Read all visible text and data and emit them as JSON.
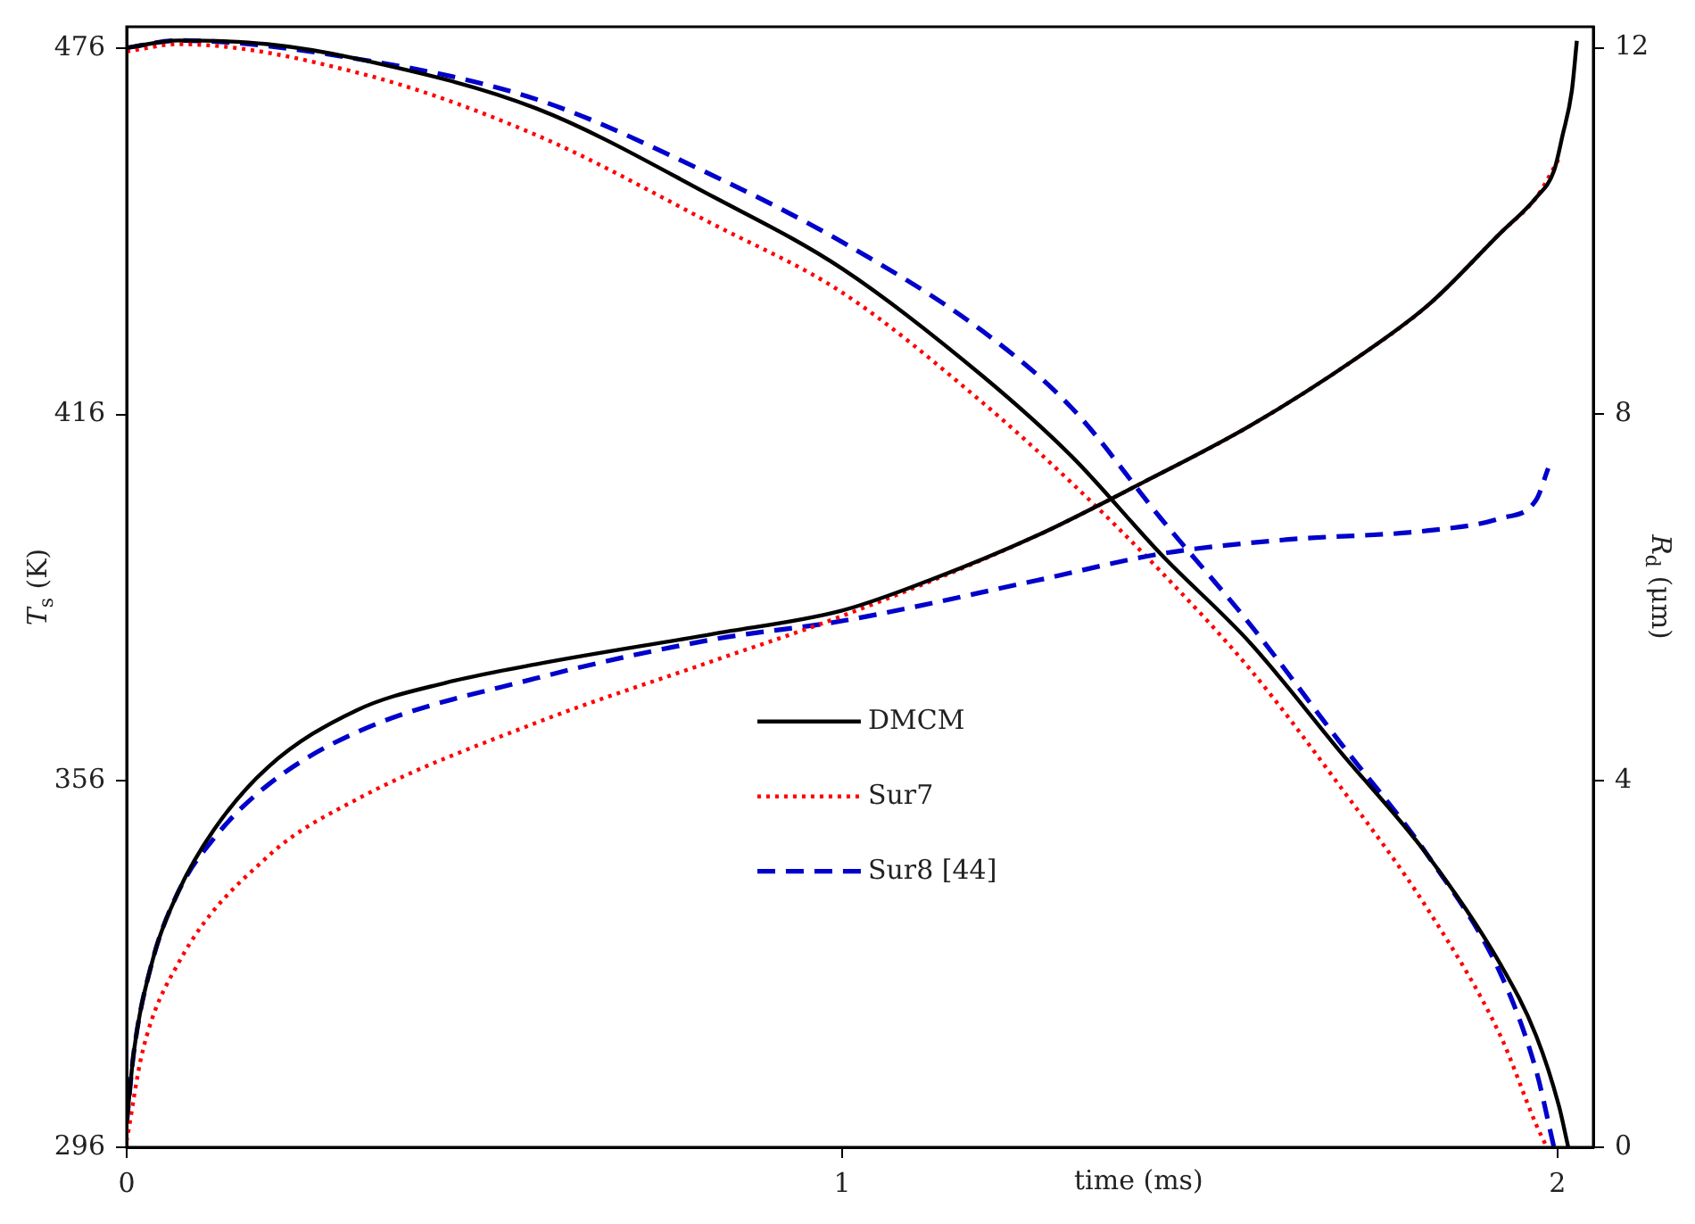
{
  "chart_data": {
    "type": "line",
    "xlabel": "time (ms)",
    "ylabel": "T$_{s}$ (K)",
    "y2label": "R$_{d}$ (μm)",
    "xlim": [
      0,
      2.05
    ],
    "xticks": [
      0,
      1,
      2
    ],
    "ylim": [
      296,
      479.5
    ],
    "yticks": [
      296,
      356,
      416,
      476
    ],
    "y2lim": [
      0,
      12.23
    ],
    "y2ticks": [
      0,
      4,
      8,
      12
    ],
    "grid": false,
    "legend": "center",
    "marker": "none",
    "series": [
      {
        "name": "DMCM",
        "color": "#000000",
        "line_style": "solid",
        "x": [
          0,
          0.01,
          0.035,
          0.072,
          0.122,
          0.197,
          0.322,
          0.447,
          0.572,
          0.821,
          1.0,
          1.121,
          1.271,
          1.421,
          1.571,
          1.72,
          1.82,
          1.92,
          1.97,
          1.995,
          2.007,
          2.02,
          2.027
        ],
        "values": [
          299.9,
          311.6,
          326.1,
          337.8,
          348.0,
          358.2,
          367.6,
          372.1,
          375.1,
          380.1,
          383.9,
          388.8,
          396.1,
          404.9,
          414.2,
          425.3,
          434.0,
          445.7,
          451.5,
          455.9,
          461.7,
          469.0,
          477.2
        ]
      },
      {
        "name": "Sur7",
        "color": "#ff0000",
        "line_style": "dotted",
        "x": [
          0,
          0.022,
          0.072,
          0.197,
          0.322,
          0.572,
          0.821,
          1.0,
          1.271,
          1.421,
          1.571,
          1.72,
          1.82,
          1.92,
          1.97,
          2.002
        ],
        "values": [
          297.0,
          311.6,
          326.1,
          343.6,
          353.0,
          365.5,
          375.7,
          383.0,
          396.1,
          404.9,
          414.2,
          425.3,
          434.0,
          445.7,
          451.5,
          457.9
        ]
      },
      {
        "name": "Sur8 [44]",
        "color": "#0000cc",
        "line_style": "dashed",
        "x": [
          0,
          0.01,
          0.035,
          0.072,
          0.122,
          0.197,
          0.322,
          0.572,
          0.821,
          1.0,
          1.271,
          1.446,
          1.62,
          1.82,
          1.92,
          1.97,
          1.987
        ],
        "values": [
          299.9,
          311.6,
          326.1,
          337.8,
          346.6,
          355.3,
          364.0,
          372.8,
          379.2,
          382.2,
          388.8,
          393.2,
          395.5,
          397.0,
          399.0,
          402.0,
          407.2
        ]
      },
      {
        "color": "#000000",
        "line_style": "solid",
        "axis": "y2",
        "x": [
          0,
          0.072,
          0.197,
          0.322,
          0.572,
          0.821,
          1.0,
          1.196,
          1.321,
          1.446,
          1.571,
          1.695,
          1.82,
          1.92,
          1.97,
          2.002,
          2.015
        ],
        "values": [
          12.0,
          12.08,
          12.04,
          11.88,
          11.34,
          10.37,
          9.59,
          8.42,
          7.54,
          6.47,
          5.5,
          4.33,
          3.17,
          2.0,
          1.22,
          0.45,
          0
        ]
      },
      {
        "color": "#ff0000",
        "line_style": "dotted",
        "axis": "y2",
        "x": [
          0,
          0.072,
          0.322,
          0.572,
          0.821,
          1.0,
          1.196,
          1.321,
          1.446,
          1.571,
          1.695,
          1.82,
          1.92,
          1.97,
          1.985
        ],
        "values": [
          11.96,
          12.04,
          11.73,
          11.05,
          10.07,
          9.33,
          8.13,
          7.25,
          6.28,
          5.21,
          3.95,
          2.58,
          1.22,
          0.25,
          0
        ]
      },
      {
        "color": "#0000cc",
        "line_style": "dashed",
        "axis": "y2",
        "x": [
          0,
          0.072,
          0.322,
          0.572,
          0.821,
          1.0,
          1.196,
          1.321,
          1.446,
          1.571,
          1.695,
          1.82,
          1.92,
          1.97,
          1.995
        ],
        "values": [
          12.0,
          12.08,
          11.88,
          11.44,
          10.6,
          9.88,
          8.91,
          8.07,
          6.86,
          5.7,
          4.43,
          3.17,
          1.9,
          0.84,
          0
        ]
      }
    ]
  }
}
